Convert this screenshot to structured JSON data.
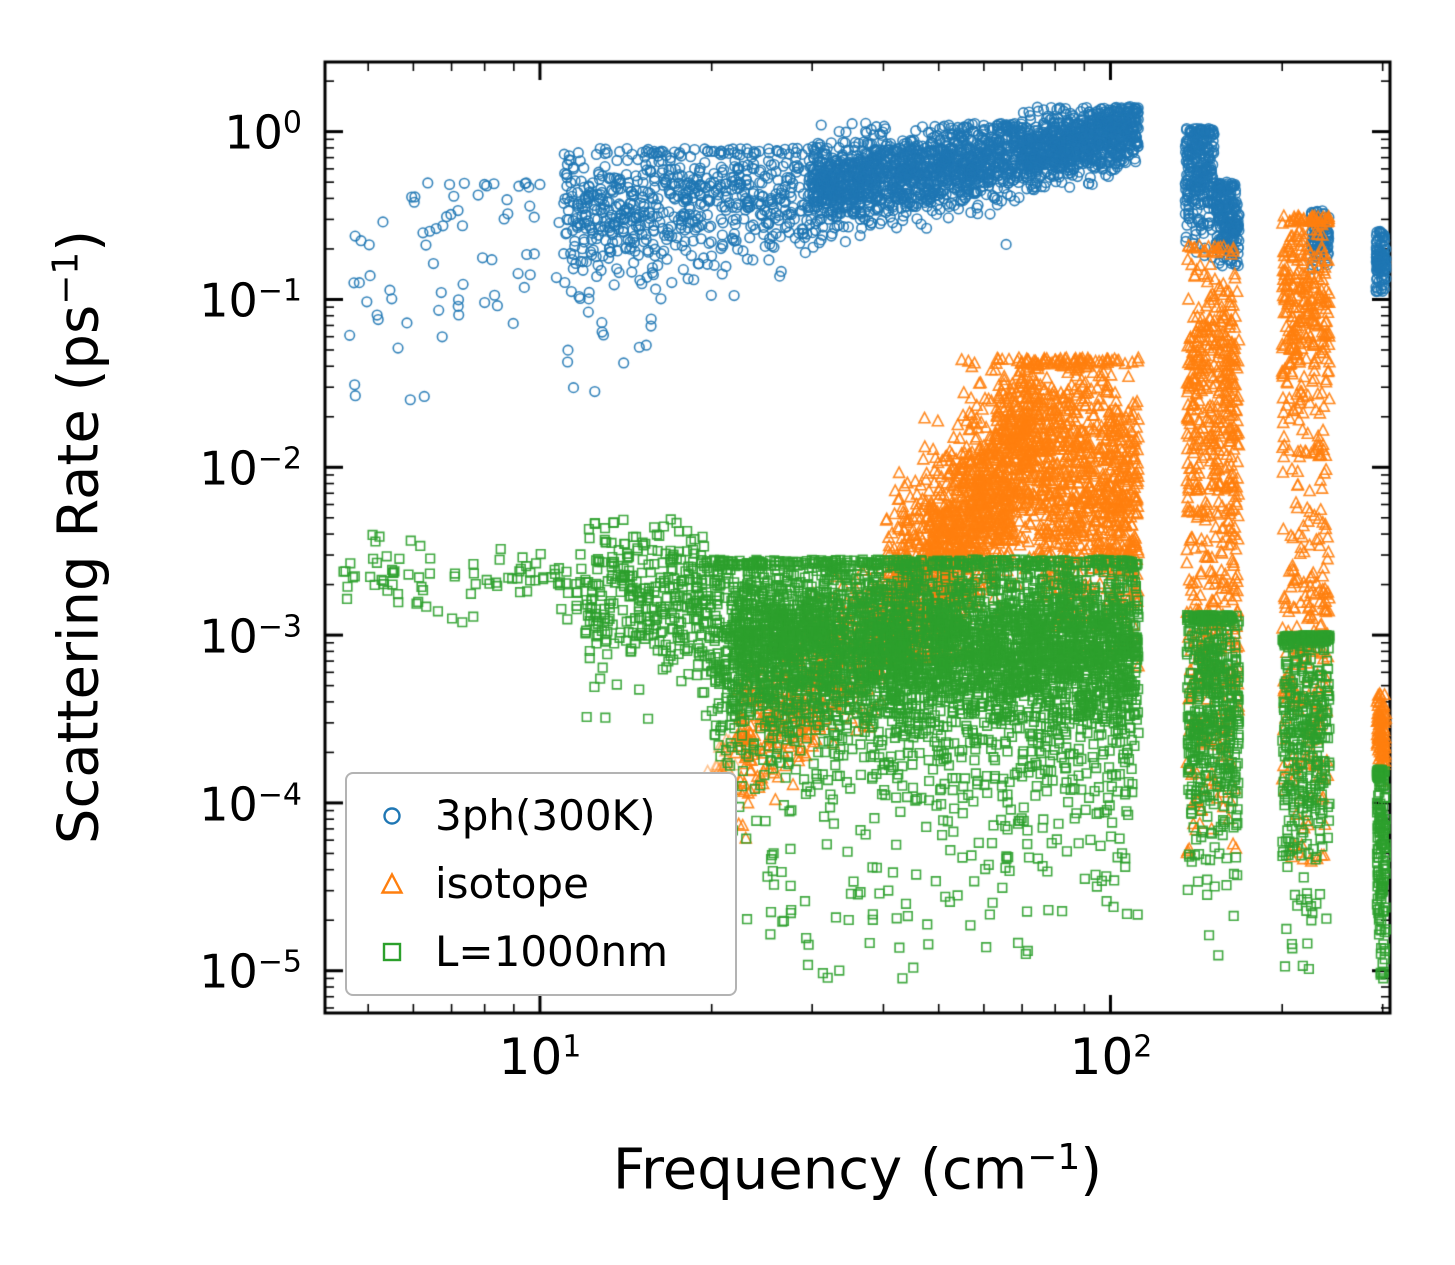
{
  "figure": {
    "background": "#ffffff"
  },
  "axes": {
    "x": {
      "label_pre": "Frequency (cm",
      "label_exp": "−1",
      "label_post": ")",
      "ticks": [
        {
          "base": "10",
          "exp": "1"
        },
        {
          "base": "10",
          "exp": "2"
        }
      ]
    },
    "y": {
      "label_pre": "Scattering Rate (ps",
      "label_exp": "−1",
      "label_post": ")",
      "ticks": [
        {
          "base": "10",
          "exp": "0"
        },
        {
          "base": "10",
          "exp": "−1"
        },
        {
          "base": "10",
          "exp": "−2"
        },
        {
          "base": "10",
          "exp": "−3"
        },
        {
          "base": "10",
          "exp": "−4"
        },
        {
          "base": "10",
          "exp": "−5"
        }
      ]
    }
  },
  "legend": {
    "items": [
      {
        "label": "3ph(300K)",
        "marker": "circle",
        "color": "#1f77b4"
      },
      {
        "label": "isotope",
        "marker": "triangle",
        "color": "#ff7f0e"
      },
      {
        "label": "L=1000nm",
        "marker": "square",
        "color": "#2ca02c"
      }
    ]
  },
  "chart_data": {
    "type": "scatter",
    "title": "",
    "xlabel": "Frequency (cm⁻¹)",
    "ylabel": "Scattering Rate (ps⁻¹)",
    "xscale": "log",
    "yscale": "log",
    "xlim": [
      4.2,
      309
    ],
    "ylim": [
      5.6e-06,
      2.6
    ],
    "grid": false,
    "legend_position": "lower left",
    "frame_color": "#000000",
    "series": [
      {
        "name": "3ph(300K)",
        "marker": "circle",
        "color": "#1f77b4",
        "bands": [
          {
            "x": [
              4.5,
              11
            ],
            "logy": [
              -0.85,
              -0.55
            ],
            "spread": 0.38,
            "count": 70,
            "clamp": [
              -1.6,
              -0.3
            ]
          },
          {
            "x": [
              11,
              16
            ],
            "logy": [
              -1.2,
              -1.1
            ],
            "spread": 0.18,
            "count": 18,
            "clamp": [
              -1.55,
              -0.85
            ]
          },
          {
            "x": [
              11,
              30
            ],
            "logy": [
              -0.5,
              -0.36
            ],
            "spread": 0.2,
            "count": 700,
            "clamp": [
              -1.0,
              -0.1
            ]
          },
          {
            "x": [
              30,
              70
            ],
            "logy": [
              -0.34,
              -0.14
            ],
            "spread": 0.13,
            "count": 1400,
            "clamp": [
              -0.7,
              0.05
            ]
          },
          {
            "x": [
              70,
              112
            ],
            "logy": [
              -0.13,
              0.01
            ],
            "spread": 0.1,
            "count": 900,
            "clamp": [
              -0.35,
              0.15
            ]
          },
          {
            "x": [
              135,
              152
            ],
            "logy": [
              -0.25,
              -0.2
            ],
            "spread": 0.22,
            "count": 280,
            "clamp": [
              -0.75,
              0.02
            ]
          },
          {
            "x": [
              153,
              168
            ],
            "logy": [
              -0.5,
              -0.55
            ],
            "spread": 0.15,
            "count": 220,
            "clamp": [
              -0.8,
              -0.3
            ]
          },
          {
            "x": [
              225,
              242
            ],
            "logy": [
              -0.6,
              -0.62
            ],
            "spread": 0.09,
            "count": 90,
            "clamp": [
              -0.82,
              -0.45
            ]
          },
          {
            "x": [
              292,
              308
            ],
            "logy": [
              -0.76,
              -0.78
            ],
            "spread": 0.1,
            "count": 160,
            "clamp": [
              -0.97,
              -0.58
            ]
          }
        ]
      },
      {
        "name": "isotope",
        "marker": "triangle",
        "color": "#ff7f0e",
        "bands": [
          {
            "x": [
              12,
              22
            ],
            "logy": [
              -5.0,
              -3.65
            ],
            "spread": 0.07,
            "count": 160,
            "clamp": [
              -5.2,
              -3.4
            ],
            "alpha": 0.45
          },
          {
            "x": [
              22,
              40
            ],
            "logy": [
              -3.65,
              -3.0
            ],
            "spread": 0.22,
            "count": 450,
            "clamp": [
              -4.3,
              -2.6
            ]
          },
          {
            "x": [
              40,
              75
            ],
            "logy": [
              -3.0,
              -1.75
            ],
            "spread": 0.3,
            "count": 1600,
            "clamp": [
              -3.15,
              -1.35
            ]
          },
          {
            "x": [
              75,
              112
            ],
            "logy": [
              -2.0,
              -2.2
            ],
            "spread": 0.42,
            "count": 900,
            "clamp": [
              -3.2,
              -1.35
            ]
          },
          {
            "x": [
              136,
              168
            ],
            "logy": [
              -1.5,
              -1.5
            ],
            "spread": 0.45,
            "count": 380,
            "clamp": [
              -2.3,
              -0.68
            ]
          },
          {
            "x": [
              136,
              168
            ],
            "logy": [
              -3.0,
              -3.0
            ],
            "spread": 0.6,
            "count": 260,
            "clamp": [
              -4.3,
              -2.1
            ]
          },
          {
            "x": [
              200,
              242
            ],
            "logy": [
              -1.0,
              -1.05
            ],
            "spread": 0.4,
            "count": 320,
            "clamp": [
              -1.9,
              -0.5
            ]
          },
          {
            "x": [
              200,
              242
            ],
            "logy": [
              -3.0,
              -3.1
            ],
            "spread": 0.7,
            "count": 220,
            "clamp": [
              -4.35,
              -1.9
            ]
          },
          {
            "x": [
              293,
              308
            ],
            "logy": [
              -3.6,
              -3.6
            ],
            "spread": 0.11,
            "count": 130,
            "clamp": [
              -3.88,
              -3.33
            ]
          }
        ]
      },
      {
        "name": "L=1000nm",
        "marker": "square",
        "color": "#2ca02c",
        "bands": [
          {
            "x": [
              4.5,
              12
            ],
            "logy": [
              -2.66,
              -2.68
            ],
            "spread": 0.1,
            "count": 90,
            "clamp": [
              -2.95,
              -2.4
            ]
          },
          {
            "x": [
              12,
              20
            ],
            "logy": [
              -2.7,
              -2.85
            ],
            "spread": 0.25,
            "count": 350,
            "clamp": [
              -3.5,
              -2.3
            ]
          },
          {
            "x": [
              20,
              112
            ],
            "logy": [
              -3.05,
              -3.15
            ],
            "spread": 0.42,
            "count": 2800,
            "clamp": [
              -4.9,
              -2.55
            ]
          },
          {
            "x": [
              22,
              112
            ],
            "logy": [
              -3.0,
              -3.1
            ],
            "spread": 0.18,
            "count": 1600,
            "clamp": [
              -3.5,
              -2.6
            ]
          },
          {
            "x": [
              25,
              112
            ],
            "logy": [
              -4.4,
              -4.3
            ],
            "spread": 0.35,
            "count": 130,
            "clamp": [
              -5.05,
              -3.7
            ]
          },
          {
            "x": [
              136,
              168
            ],
            "logy": [
              -3.35,
              -3.4
            ],
            "spread": 0.5,
            "count": 520,
            "clamp": [
              -5.0,
              -2.88
            ]
          },
          {
            "x": [
              200,
              242
            ],
            "logy": [
              -3.5,
              -3.55
            ],
            "spread": 0.55,
            "count": 420,
            "clamp": [
              -5.0,
              -3.0
            ]
          },
          {
            "x": [
              293,
              308
            ],
            "logy": [
              -4.3,
              -4.3
            ],
            "spread": 0.4,
            "count": 220,
            "clamp": [
              -5.05,
              -3.8
            ]
          }
        ]
      }
    ]
  }
}
